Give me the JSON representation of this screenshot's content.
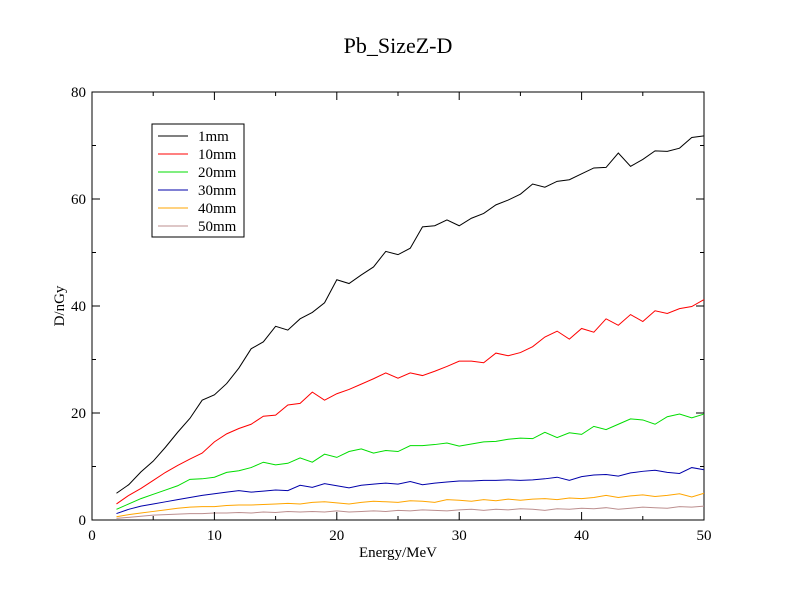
{
  "chart_data": {
    "type": "line",
    "title": "Pb_SizeZ-D",
    "xlabel": "Energy/MeV",
    "ylabel": "D/nGy",
    "xlim": [
      0,
      50
    ],
    "ylim": [
      0,
      80
    ],
    "xticks": [
      "0",
      "10",
      "20",
      "30",
      "40",
      "50"
    ],
    "yticks": [
      "0",
      "20",
      "40",
      "60",
      "80"
    ],
    "grid": false,
    "legend_position": "top-left",
    "x": [
      2,
      3,
      4,
      5,
      6,
      7,
      8,
      9,
      10,
      11,
      12,
      13,
      14,
      15,
      16,
      17,
      18,
      19,
      20,
      21,
      22,
      23,
      24,
      25,
      26,
      27,
      28,
      29,
      30,
      31,
      32,
      33,
      34,
      35,
      36,
      37,
      38,
      39,
      40,
      41,
      42,
      43,
      44,
      45,
      46,
      47,
      48,
      49,
      50
    ],
    "series": [
      {
        "name": "1mm",
        "color": "#000000",
        "values": [
          5.0,
          6.6,
          9.0,
          11.0,
          13.6,
          16.4,
          19.0,
          22.4,
          23.4,
          25.5,
          28.4,
          32.0,
          33.3,
          36.2,
          35.5,
          37.6,
          38.8,
          40.6,
          44.9,
          44.2,
          45.8,
          47.3,
          50.2,
          49.6,
          50.8,
          54.8,
          55.0,
          56.1,
          55.0,
          56.4,
          57.3,
          58.9,
          59.8,
          60.9,
          62.8,
          62.2,
          63.3,
          63.6,
          64.7,
          65.8,
          65.9,
          68.6,
          66.1,
          67.4,
          69.0,
          68.9,
          69.5,
          71.5,
          71.8
        ]
      },
      {
        "name": "10mm",
        "color": "#ff0000",
        "values": [
          3.0,
          4.6,
          5.9,
          7.4,
          8.9,
          10.2,
          11.4,
          12.5,
          14.6,
          16.1,
          17.1,
          17.9,
          19.4,
          19.6,
          21.5,
          21.8,
          23.9,
          22.4,
          23.6,
          24.4,
          25.4,
          26.4,
          27.5,
          26.5,
          27.5,
          27.0,
          27.8,
          28.7,
          29.7,
          29.7,
          29.4,
          31.2,
          30.7,
          31.3,
          32.4,
          34.2,
          35.3,
          33.8,
          35.8,
          35.1,
          37.6,
          36.4,
          38.4,
          37.1,
          39.1,
          38.6,
          39.5,
          39.9,
          41.2
        ]
      },
      {
        "name": "20mm",
        "color": "#00dd00",
        "values": [
          2.0,
          3.0,
          4.0,
          4.8,
          5.6,
          6.4,
          7.6,
          7.7,
          8.0,
          8.9,
          9.2,
          9.8,
          10.8,
          10.3,
          10.6,
          11.6,
          10.8,
          12.3,
          11.7,
          12.8,
          13.3,
          12.5,
          13.0,
          12.8,
          13.9,
          13.9,
          14.1,
          14.4,
          13.8,
          14.2,
          14.6,
          14.7,
          15.1,
          15.3,
          15.2,
          16.4,
          15.4,
          16.3,
          16.0,
          17.5,
          16.9,
          17.9,
          18.9,
          18.7,
          17.9,
          19.3,
          19.8,
          19.1,
          19.8
        ]
      },
      {
        "name": "30mm",
        "color": "#0000aa",
        "values": [
          1.2,
          2.0,
          2.6,
          3.0,
          3.4,
          3.8,
          4.2,
          4.6,
          4.9,
          5.2,
          5.5,
          5.2,
          5.4,
          5.6,
          5.5,
          6.5,
          6.1,
          6.8,
          6.4,
          6.0,
          6.5,
          6.7,
          6.9,
          6.7,
          7.2,
          6.6,
          6.9,
          7.1,
          7.3,
          7.3,
          7.4,
          7.4,
          7.5,
          7.4,
          7.5,
          7.7,
          8.0,
          7.4,
          8.1,
          8.4,
          8.5,
          8.2,
          8.8,
          9.1,
          9.3,
          8.9,
          8.7,
          9.8,
          9.4
        ]
      },
      {
        "name": "40mm",
        "color": "#ffa500",
        "values": [
          0.6,
          1.0,
          1.3,
          1.6,
          1.9,
          2.2,
          2.4,
          2.5,
          2.5,
          2.7,
          2.8,
          2.8,
          2.9,
          3.0,
          3.1,
          3.0,
          3.3,
          3.4,
          3.2,
          3.0,
          3.3,
          3.5,
          3.4,
          3.3,
          3.6,
          3.5,
          3.3,
          3.8,
          3.7,
          3.5,
          3.8,
          3.6,
          3.9,
          3.7,
          3.9,
          4.0,
          3.8,
          4.1,
          4.0,
          4.2,
          4.6,
          4.2,
          4.5,
          4.7,
          4.4,
          4.6,
          4.9,
          4.3,
          5.0
        ]
      },
      {
        "name": "50mm",
        "color": "#bc8f8f",
        "values": [
          0.3,
          0.5,
          0.7,
          0.9,
          1.0,
          1.1,
          1.2,
          1.2,
          1.3,
          1.3,
          1.4,
          1.3,
          1.5,
          1.4,
          1.6,
          1.5,
          1.6,
          1.5,
          1.7,
          1.5,
          1.6,
          1.7,
          1.6,
          1.8,
          1.7,
          1.9,
          1.8,
          1.7,
          1.9,
          2.0,
          1.8,
          2.0,
          1.9,
          2.1,
          2.0,
          1.8,
          2.1,
          2.0,
          2.2,
          2.1,
          2.3,
          2.0,
          2.2,
          2.4,
          2.3,
          2.2,
          2.5,
          2.4,
          2.6
        ]
      }
    ]
  }
}
